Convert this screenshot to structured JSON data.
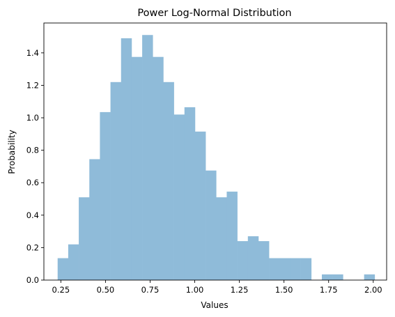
{
  "chart_data": {
    "type": "bar",
    "title": "Power Log-Normal Distribution",
    "xlabel": "Values",
    "ylabel": "Probability",
    "xlim": [
      0.155,
      2.075
    ],
    "ylim": [
      0.0,
      1.584
    ],
    "xticks": [
      0.25,
      0.5,
      0.75,
      1.0,
      1.25,
      1.5,
      1.75,
      2.0
    ],
    "xtick_labels": [
      "0.25",
      "0.50",
      "0.75",
      "1.00",
      "1.25",
      "1.50",
      "1.75",
      "2.00"
    ],
    "yticks": [
      0.0,
      0.2,
      0.4,
      0.6,
      0.8,
      1.0,
      1.2,
      1.4
    ],
    "ytick_labels": [
      "0.0",
      "0.2",
      "0.4",
      "0.6",
      "0.8",
      "1.0",
      "1.2",
      "1.4"
    ],
    "bar_color": "#8fbbd9",
    "bin_start": 0.232,
    "bin_width": 0.0592,
    "values": [
      0.135,
      0.22,
      0.51,
      0.745,
      1.035,
      1.22,
      1.49,
      1.375,
      1.51,
      1.375,
      1.22,
      1.02,
      1.065,
      0.915,
      0.675,
      0.51,
      0.545,
      0.24,
      0.27,
      0.24,
      0.135,
      0.135,
      0.135,
      0.135,
      0.0,
      0.035,
      0.035,
      0.0,
      0.0,
      0.035
    ]
  }
}
